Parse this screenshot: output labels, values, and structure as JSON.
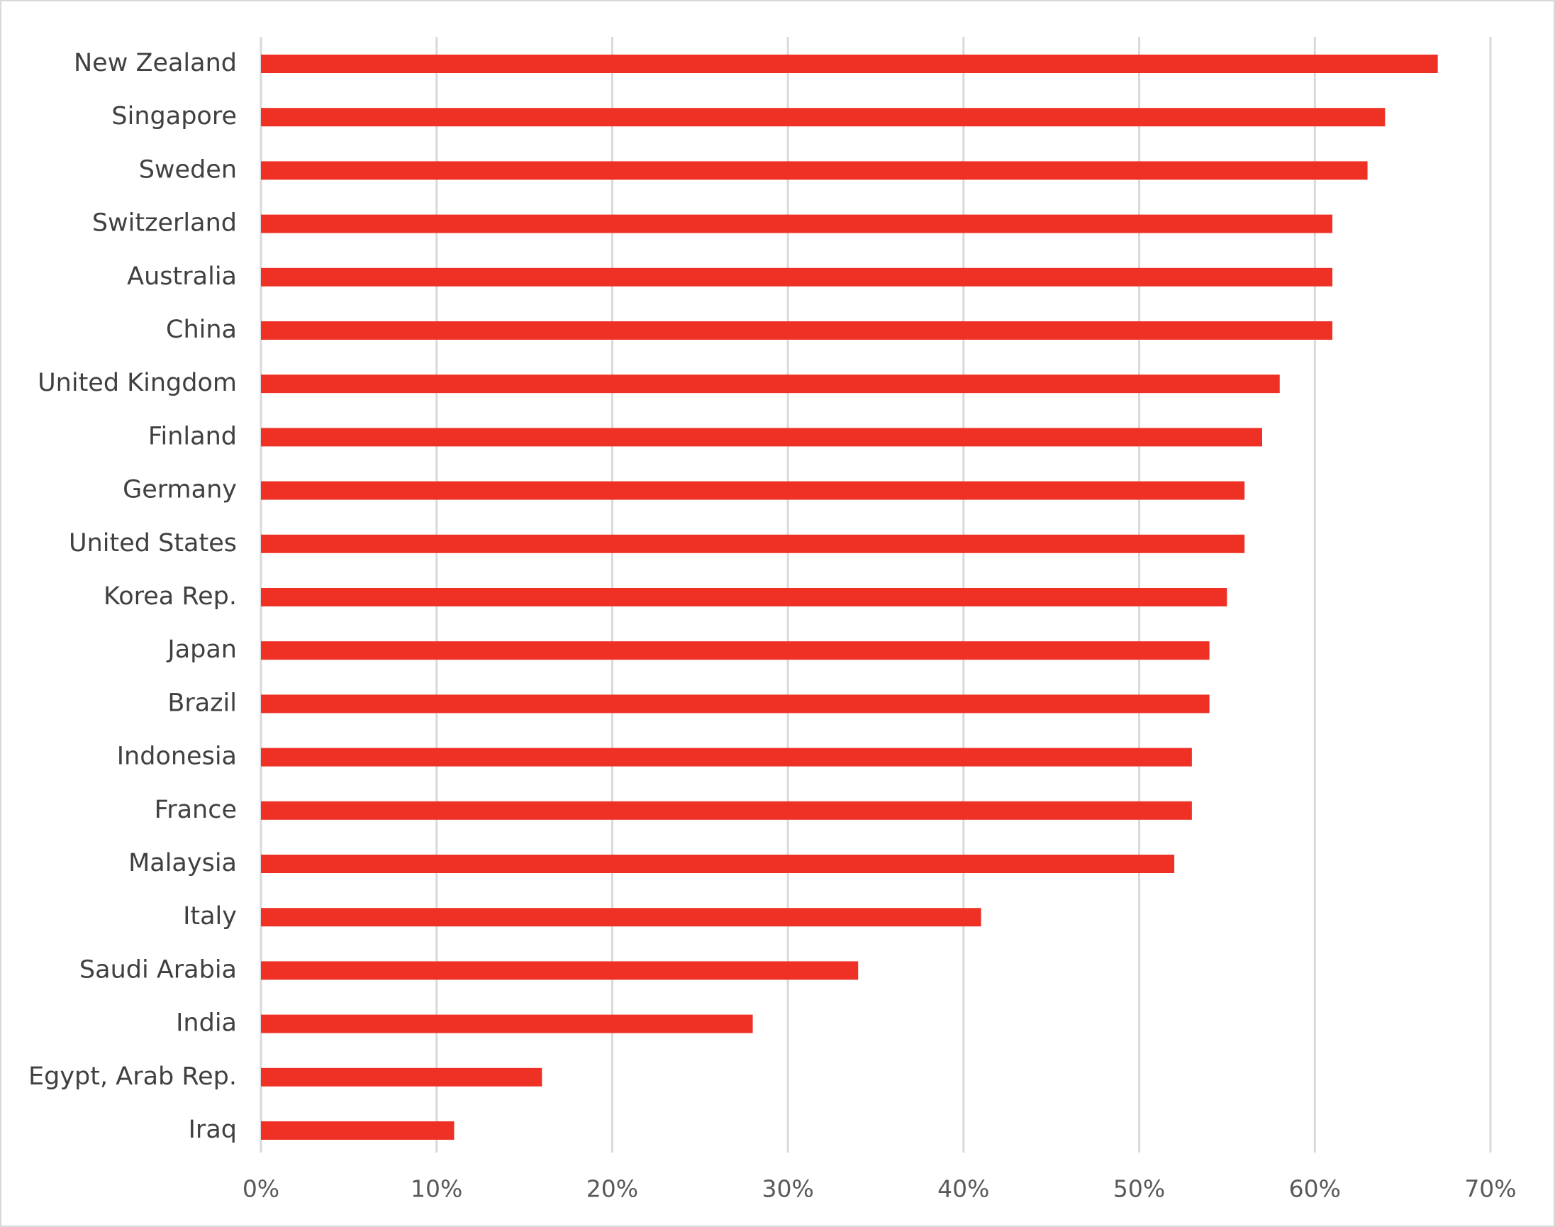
{
  "chart_data": {
    "type": "bar",
    "orientation": "horizontal",
    "categories": [
      "New Zealand",
      "Singapore",
      "Sweden",
      "Switzerland",
      "Australia",
      "China",
      "United Kingdom",
      "Finland",
      "Germany",
      "United States",
      "Korea Rep.",
      "Japan",
      "Brazil",
      "Indonesia",
      "France",
      "Malaysia",
      "Italy",
      "Saudi Arabia",
      "India",
      "Egypt, Arab Rep.",
      "Iraq"
    ],
    "values": [
      67,
      64,
      63,
      61,
      61,
      61,
      58,
      57,
      56,
      56,
      55,
      54,
      54,
      53,
      53,
      52,
      41,
      34,
      28,
      16,
      11
    ],
    "value_unit": "%",
    "xlim": [
      0,
      70
    ],
    "xticks": [
      0,
      10,
      20,
      30,
      40,
      50,
      60,
      70
    ],
    "xtick_labels": [
      "0%",
      "10%",
      "20%",
      "30%",
      "40%",
      "50%",
      "60%",
      "70%"
    ],
    "title": "",
    "xlabel": "",
    "ylabel": "",
    "grid": "vertical",
    "legend": "none",
    "colors": {
      "bar": "#ee3124",
      "grid": "#d9d9d9",
      "label": "#404040",
      "tick": "#595959",
      "border": "#d9d9d9"
    }
  }
}
